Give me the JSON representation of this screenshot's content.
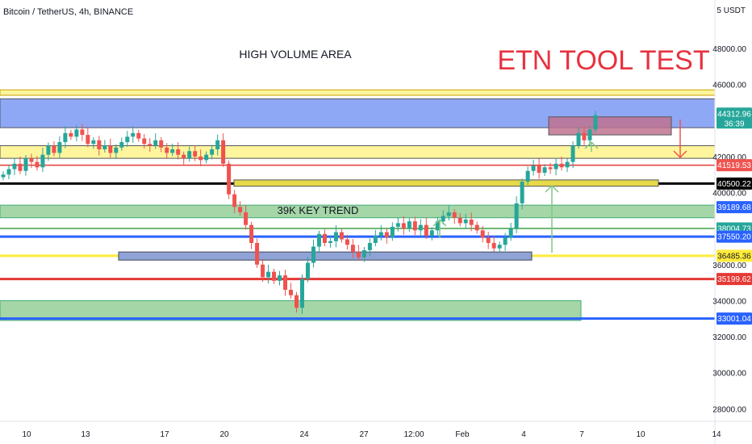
{
  "header": {
    "symbol_title": "Bitcoin / TetherUS, 4h, BINANCE",
    "currency": "USDT",
    "currency_prefix": "5"
  },
  "annotations": {
    "headline": "ETN TOOL TEST",
    "high_volume_label": "HIGH VOLUME AREA",
    "key_trend_label": "39K KEY TREND"
  },
  "colors": {
    "up": "#26a69a",
    "down": "#ef5350",
    "headline": "#e8313f",
    "blue_zone": "#8fa8f5",
    "yellow_zone": "#fff59d",
    "green_zone": "#a5d6a7",
    "pink_box": "#c0728f",
    "red_line": "#e53935",
    "blue_line": "#2962ff",
    "yellow_line": "#ffeb3b",
    "black_line": "#000000",
    "green_line": "#43a047",
    "arrow_green": "#81c784",
    "arrow_red": "#ef5350"
  },
  "chart_data": {
    "type": "candlestick",
    "ylim": [
      27000,
      50000
    ],
    "y_ticks": [
      "48000.00",
      "46000.00",
      "42000.00",
      "40000.00",
      "36000.00",
      "34000.00",
      "32000.00",
      "30000.00",
      "28000.00"
    ],
    "x_ticks": [
      "10",
      "13",
      "17",
      "20",
      "24",
      "27",
      "12:00",
      "Feb",
      "4",
      "7",
      "10",
      "14"
    ],
    "price_labels": [
      {
        "value": "44312.96",
        "sub": "36:39",
        "color": "#26a69a"
      },
      {
        "value": "41519.53",
        "color": "#ef5350"
      },
      {
        "value": "40500.22",
        "color": "#000000"
      },
      {
        "value": "39189.68",
        "color": "#2962ff"
      },
      {
        "value": "38004.73",
        "color": "#26a69a"
      },
      {
        "value": "37550.20",
        "color": "#2962ff"
      },
      {
        "value": "36485.36",
        "color": "#ffeb3b"
      },
      {
        "value": "35199.62",
        "color": "#e53935"
      },
      {
        "value": "33001.04",
        "color": "#2962ff"
      }
    ],
    "close_series": [
      41000,
      41300,
      41600,
      41200,
      41900,
      41700,
      41400,
      42100,
      42600,
      42200,
      42800,
      43300,
      43100,
      43500,
      43200,
      42700,
      42900,
      42400,
      42600,
      42200,
      42500,
      42800,
      43100,
      43300,
      43000,
      42700,
      42600,
      42900,
      42500,
      42200,
      42400,
      42100,
      41900,
      42300,
      42000,
      41800,
      42100,
      42400,
      42900,
      41600,
      39900,
      39200,
      38900,
      38200,
      37200,
      36000,
      35300,
      35600,
      35100,
      35400,
      34600,
      34300,
      33600,
      35200,
      36100,
      37000,
      37700,
      37200,
      37300,
      37800,
      37400,
      37100,
      36700,
      36400,
      36800,
      37200,
      37600,
      37800,
      37500,
      38100,
      38300,
      38000,
      38400,
      37900,
      38200,
      37600,
      37900,
      38400,
      38700,
      38900,
      38600,
      38300,
      38500,
      38200,
      37900,
      37500,
      37200,
      36900,
      37100,
      37500,
      38000,
      39400,
      40600,
      41200,
      41500,
      41100,
      41400,
      41300,
      41600,
      41400,
      41700,
      42600,
      43300,
      42900,
      43500,
      44300
    ]
  }
}
